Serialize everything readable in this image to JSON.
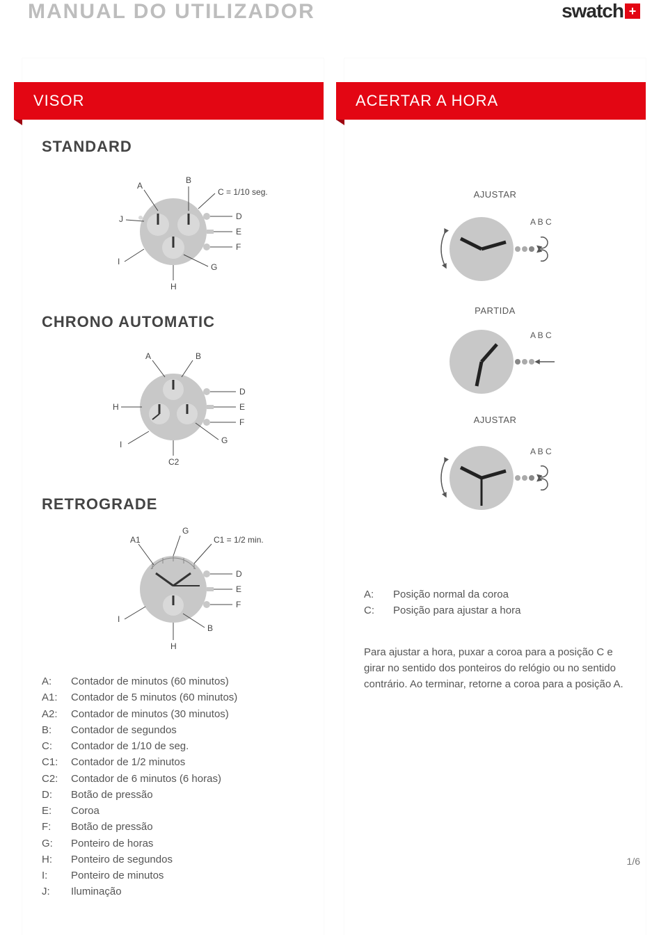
{
  "header": {
    "manual_title": "MANUAL DO UTILIZADOR",
    "brand_word": "swatch",
    "brand_plus": "+"
  },
  "left": {
    "ribbon": "VISOR",
    "sec_standard": "STANDARD",
    "sec_chrono": "CHRONO AUTOMATIC",
    "sec_retro": "RETROGRADE",
    "std_labels": {
      "A": "A",
      "B": "B",
      "C": "C = 1/10 seg.",
      "D": "D",
      "E": "E",
      "F": "F",
      "G": "G",
      "H": "H",
      "I": "I",
      "J": "J"
    },
    "chrono_labels": {
      "A": "A",
      "B": "B",
      "D": "D",
      "E": "E",
      "F": "F",
      "G": "G",
      "H": "H",
      "I": "I",
      "C2": "C2"
    },
    "retro_labels": {
      "A1": "A1",
      "G": "G",
      "C1": "C1 = 1/2 min.",
      "D": "D",
      "E": "E",
      "F": "F",
      "B": "B",
      "H": "H",
      "I": "I"
    },
    "legend": [
      {
        "k": "A:",
        "v": "Contador de minutos (60 minutos)"
      },
      {
        "k": "A1:",
        "v": "Contador de 5 minutos (60 minutos)"
      },
      {
        "k": "A2:",
        "v": "Contador de minutos (30 minutos)"
      },
      {
        "k": "B:",
        "v": "Contador de segundos"
      },
      {
        "k": "C:",
        "v": "Contador de 1/10 de seg."
      },
      {
        "k": "C1:",
        "v": "Contador de 1/2 minutos"
      },
      {
        "k": "C2:",
        "v": "Contador de 6 minutos (6 horas)"
      },
      {
        "k": "D:",
        "v": "Botão de pressão"
      },
      {
        "k": "E:",
        "v": "Coroa"
      },
      {
        "k": "F:",
        "v": "Botão de pressão"
      },
      {
        "k": "G:",
        "v": "Ponteiro de horas"
      },
      {
        "k": "H:",
        "v": "Ponteiro de segundos"
      },
      {
        "k": "I:",
        "v": "Ponteiro de minutos"
      },
      {
        "k": "J:",
        "v": "Iluminação"
      }
    ]
  },
  "right": {
    "ribbon": "ACERTAR A HORA",
    "lbl_ajustar": "AJUSTAR",
    "lbl_partida": "PARTIDA",
    "abc": "A B C",
    "legend": [
      {
        "k": "A:",
        "v": "Posição normal da coroa"
      },
      {
        "k": "C:",
        "v": "Posição para ajustar a hora"
      }
    ],
    "body": "Para ajustar a hora, puxar a coroa para a posição C e girar no sentido dos ponteiros do relógio ou no sentido contrário. Ao terminar, retorne a coroa para a posição A."
  },
  "footer": {
    "page": "1/6"
  },
  "colors": {
    "accent": "#e30613",
    "dial": "#c8c8c8",
    "sub": "#d9d9d9",
    "line": "#444",
    "arc": "#555"
  }
}
